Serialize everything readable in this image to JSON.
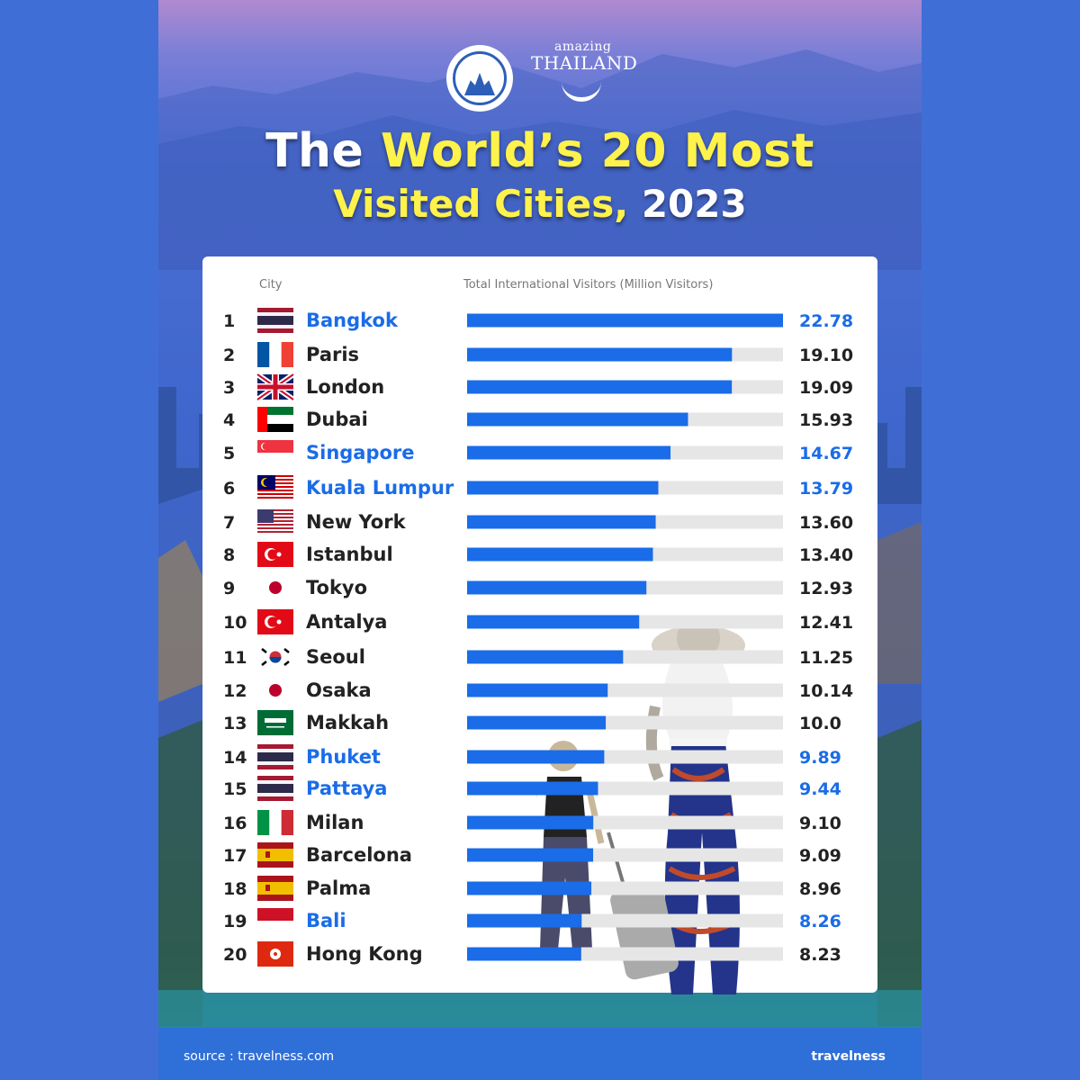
{
  "logos": {
    "tat_logo_icon": "tourism-authority-of-thailand-seal",
    "amazing_small": "amazing",
    "amazing_big": "THAILAND"
  },
  "title": {
    "line1_white": "The ",
    "line1_yellow": "World’s 20 Most",
    "line2_yellow": "Visited Cities, ",
    "line2_white": "2023"
  },
  "headers": {
    "city": "City",
    "visitors": "Total International Visitors (Million Visitors)"
  },
  "footer": {
    "source": "source : travelness.com",
    "brand": "travelness"
  },
  "colors": {
    "bar": "#1a6ce8",
    "track": "#e6e6e6",
    "highlight_text": "#1a6ce8",
    "normal_text": "#222222",
    "title_yellow": "#fff24a"
  },
  "chart_data": {
    "type": "bar",
    "orientation": "horizontal",
    "title": "The World’s 20 Most Visited Cities, 2023",
    "xlabel": "Total International Visitors (Million Visitors)",
    "ylabel": "City",
    "xlim": [
      0,
      22.78
    ],
    "categories": [
      "Bangkok",
      "Paris",
      "London",
      "Dubai",
      "Singapore",
      "Kuala Lumpur",
      "New York",
      "Istanbul",
      "Tokyo",
      "Antalya",
      "Seoul",
      "Osaka",
      "Makkah",
      "Phuket",
      "Pattaya",
      "Milan",
      "Barcelona",
      "Palma",
      "Bali",
      "Hong Kong"
    ],
    "values": [
      22.78,
      19.1,
      19.09,
      15.93,
      14.67,
      13.79,
      13.6,
      13.4,
      12.93,
      12.41,
      11.25,
      10.14,
      10.0,
      9.89,
      9.44,
      9.1,
      9.09,
      8.96,
      8.26,
      8.23
    ],
    "labels": [
      "22.78",
      "19.10",
      "19.09",
      "15.93",
      "14.67",
      "13.79",
      "13.60",
      "13.40",
      "12.93",
      "12.41",
      "11.25",
      "10.14",
      "10.0",
      "9.89",
      "9.44",
      "9.10",
      "9.09",
      "8.96",
      "8.26",
      "8.23"
    ],
    "ranks": [
      "1",
      "2",
      "3",
      "4",
      "5",
      "6",
      "7",
      "8",
      "9",
      "10",
      "11",
      "12",
      "13",
      "14",
      "15",
      "16",
      "17",
      "18",
      "19",
      "20"
    ],
    "flags": [
      "thailand",
      "france",
      "united-kingdom",
      "uae",
      "singapore",
      "malaysia",
      "usa",
      "turkey",
      "japan",
      "turkey",
      "south-korea",
      "japan",
      "saudi-arabia",
      "thailand",
      "thailand",
      "italy",
      "spain",
      "spain",
      "indonesia",
      "hong-kong"
    ],
    "highlighted": [
      true,
      false,
      false,
      false,
      true,
      true,
      false,
      false,
      false,
      false,
      false,
      false,
      false,
      true,
      true,
      false,
      false,
      false,
      true,
      false
    ]
  }
}
